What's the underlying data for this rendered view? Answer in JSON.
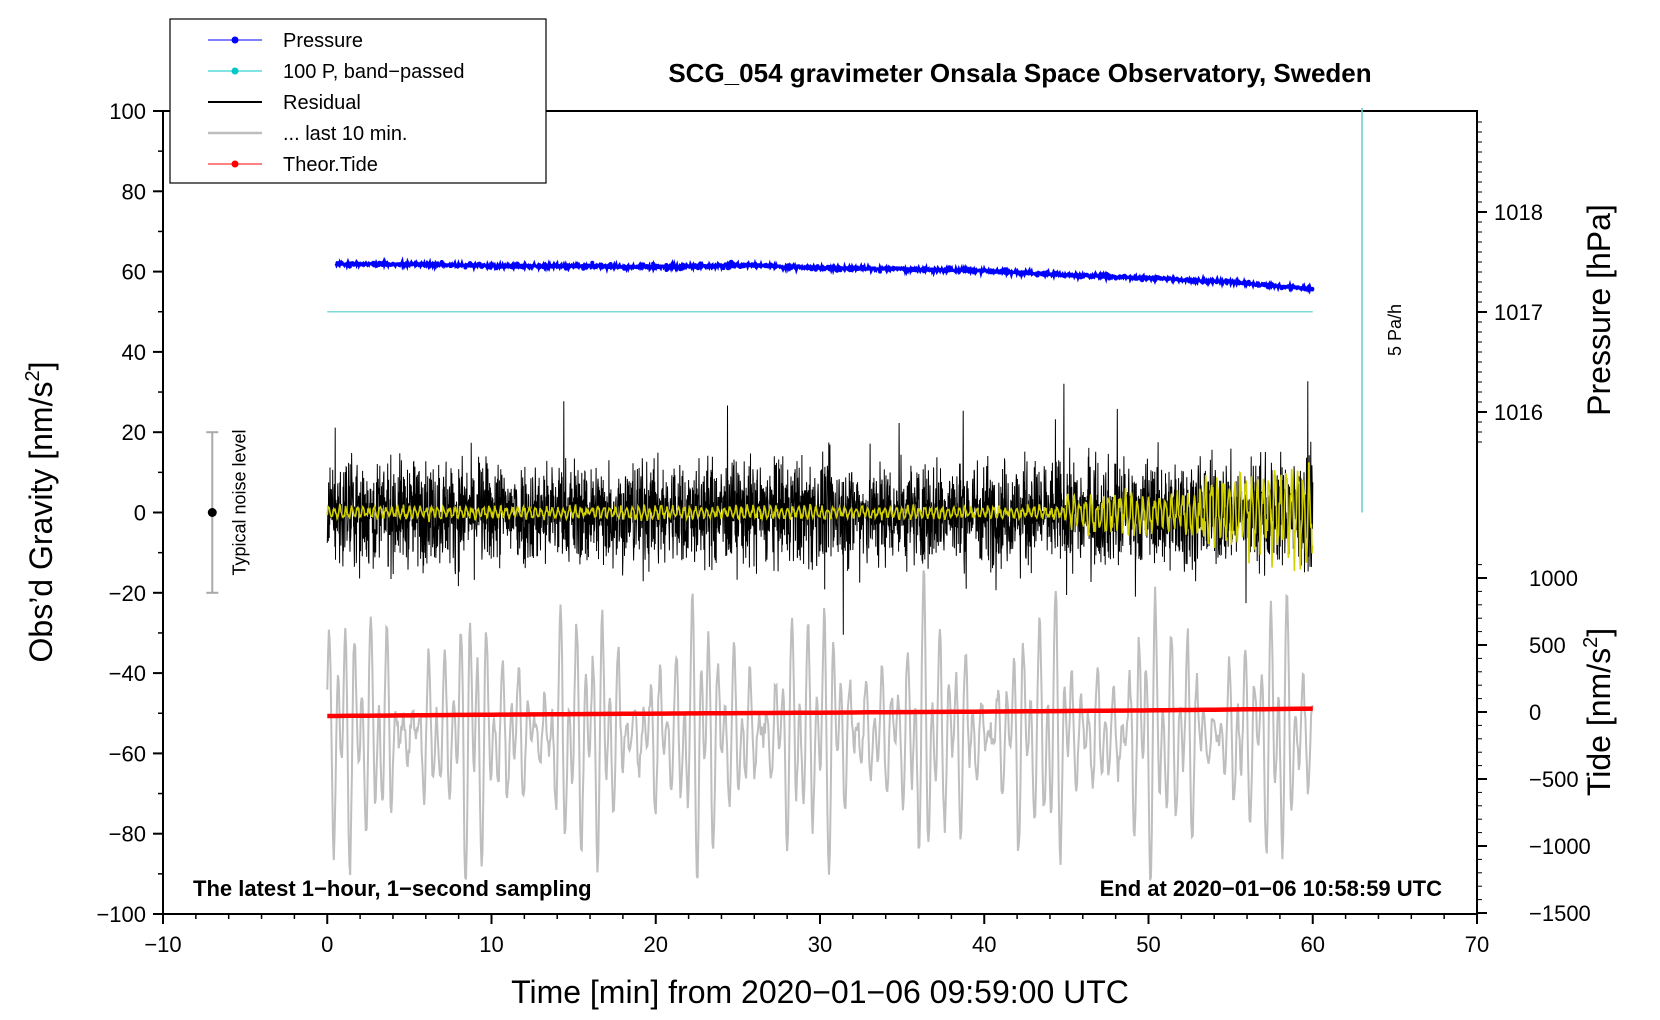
{
  "chart_data": {
    "type": "line",
    "title": "SCG_054 gravimeter Onsala Space Observatory, Sweden",
    "xlabel": "Time [min] from 2020−01−06 09:59:00 UTC",
    "ylabel_left_main": "Obs’d Gravity [nm/s",
    "ylabel_left_sup": "2",
    "ylabel_left_end": "]",
    "ylabel_right_top": "Pressure [hPa]",
    "ylabel_right_bottom_main": "Tide [nm/s",
    "ylabel_right_bottom_sup": "2",
    "ylabel_right_bottom_end": "]",
    "xlim": [
      -10,
      70
    ],
    "ylim": [
      -100,
      100
    ],
    "x_ticks": [
      "−10",
      "0",
      "10",
      "20",
      "30",
      "40",
      "50",
      "60",
      "70"
    ],
    "y_ticks": [
      "100",
      "80",
      "60",
      "40",
      "20",
      "0",
      "−20",
      "−40",
      "−60",
      "−80",
      "−100"
    ],
    "pressure_ticks": [
      "1018",
      "1017",
      "1016"
    ],
    "pressure_tick_values": [
      1018,
      1017,
      1016
    ],
    "tide_ticks": [
      "1000",
      "500",
      "0",
      "−500",
      "−1000",
      "−1500"
    ],
    "tide_tick_values": [
      1000,
      500,
      0,
      -500,
      -1000,
      -1500
    ],
    "legend": [
      {
        "label": "Pressure",
        "color": "#0000ff",
        "marker": true
      },
      {
        "label": "100 P, band−passed",
        "color": "#00c8c8",
        "marker": true
      },
      {
        "label": "Residual",
        "color": "#000000",
        "marker": false
      },
      {
        "label": "... last 10 min.",
        "color": "#bebebe",
        "marker": false
      },
      {
        "label": "Theor.Tide",
        "color": "#ff0000",
        "marker": true
      }
    ],
    "series": [
      {
        "name": "Pressure",
        "color": "#0000ff",
        "units": "hPa",
        "x": [
          0.5,
          5,
          10,
          15,
          20,
          25,
          30,
          35,
          40,
          45,
          50,
          55,
          60
        ],
        "values": [
          1017.48,
          1017.48,
          1017.46,
          1017.46,
          1017.45,
          1017.47,
          1017.44,
          1017.43,
          1017.41,
          1017.37,
          1017.34,
          1017.3,
          1017.23
        ]
      },
      {
        "name": "Theor.Tide",
        "color": "#ff0000",
        "units": "nm/s2",
        "x": [
          0,
          10,
          20,
          30,
          40,
          50,
          60
        ],
        "values": [
          -30,
          -20,
          -12,
          -5,
          3,
          12,
          25
        ]
      },
      {
        "name": "Residual",
        "color": "#000000",
        "units": "nm/s2",
        "x_range": [
          0,
          60
        ],
        "amplitude": 25
      },
      {
        "name": "100 P, band-passed",
        "color": "#d0d000",
        "units": "nm/s2",
        "x_range": [
          0,
          60
        ],
        "amplitude": 3
      },
      {
        "name": "... last 10 min.",
        "color": "#bebebe",
        "units": "nm/s2",
        "x_range": [
          0,
          60
        ],
        "center": -55,
        "amplitude": 28
      }
    ],
    "noise_bar": {
      "label": "Typical noise level",
      "x": -7,
      "center": 0,
      "low": -20,
      "high": 20
    },
    "rate_marker": {
      "label": "5 Pa/h",
      "x": 63,
      "from": 0,
      "to": 100
    },
    "pressure_reference_y": 50,
    "annotation_left": "The latest 1−hour, 1−second sampling",
    "annotation_right": "End at 2020−01−06 10:58:59 UTC"
  }
}
